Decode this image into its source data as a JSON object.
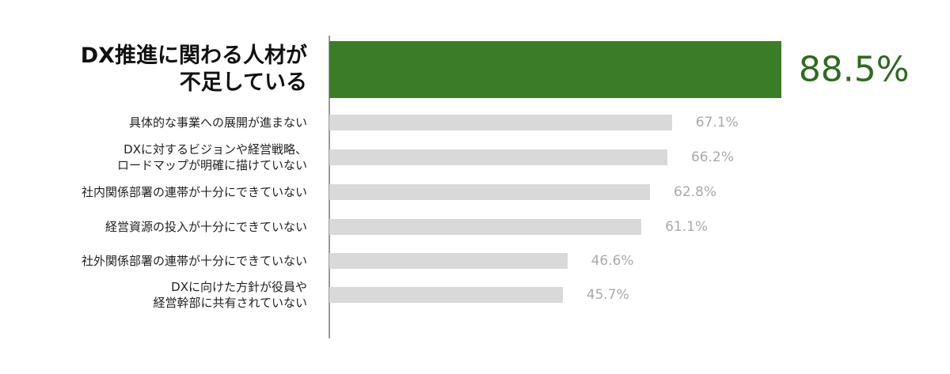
{
  "chart_data": {
    "type": "bar",
    "orientation": "horizontal",
    "categories": [
      "DX推進に関わる人材が\n不足している",
      "具体的な事業への展開が進まない",
      "DXに対するビジョンや経営戦略、\nロードマップが明確に描けていない",
      "社内関係部署の連帯が十分にできていない",
      "経営資源の投入が十分にできていない",
      "社外関係部署の連帯が十分にできていない",
      "DXに向けた方針が役員や\n経営幹部に共有されていない"
    ],
    "values": [
      88.5,
      67.1,
      66.2,
      62.8,
      61.1,
      46.6,
      45.7
    ],
    "value_labels": [
      "88.5%",
      "67.1%",
      "66.2%",
      "62.8%",
      "61.1%",
      "46.6%",
      "45.7%"
    ],
    "colors": [
      "#3b7d27",
      "#d9d9d9",
      "#d9d9d9",
      "#d9d9d9",
      "#d9d9d9",
      "#d9d9d9",
      "#d9d9d9"
    ]
  }
}
